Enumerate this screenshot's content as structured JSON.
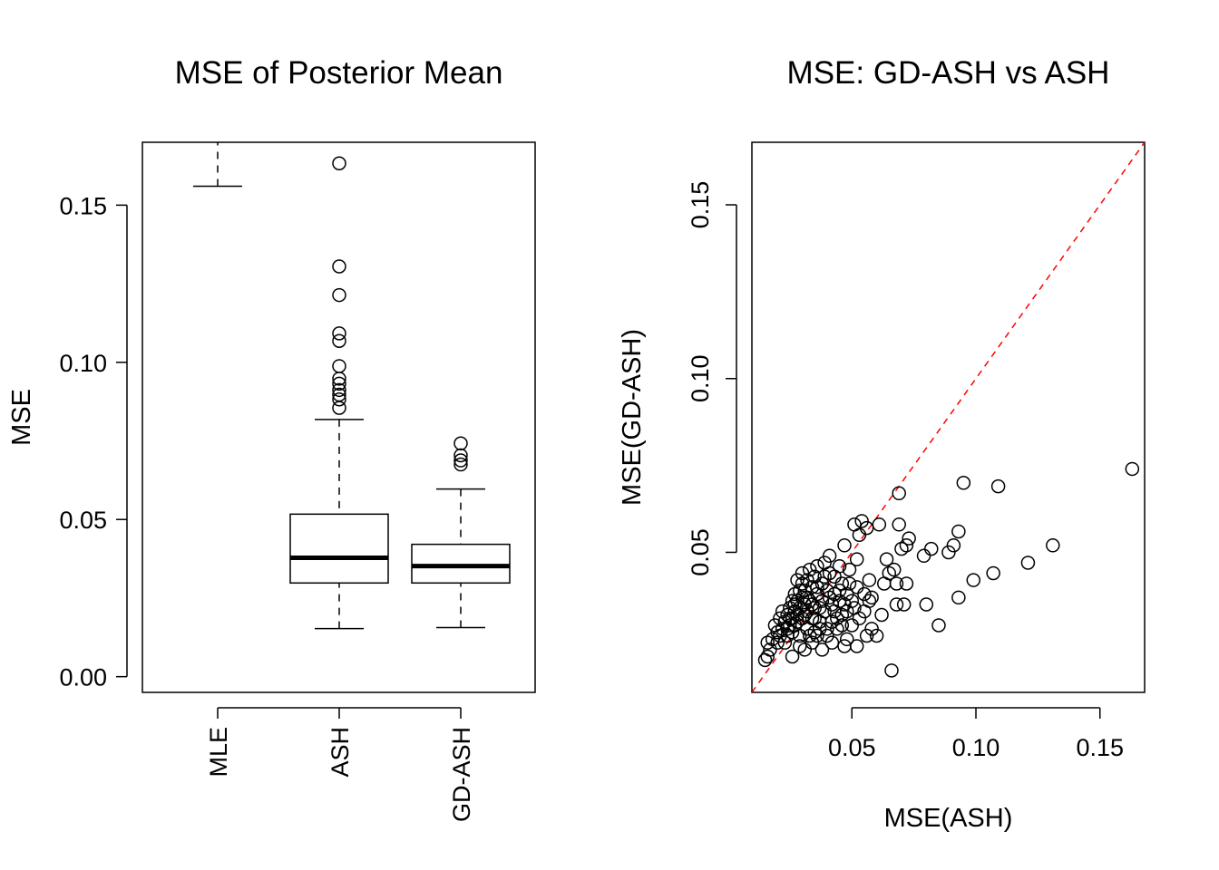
{
  "chart_data": [
    {
      "type": "box",
      "title": "MSE of Posterior Mean",
      "xlabel": "",
      "ylabel": "MSE",
      "ylim": [
        -0.005,
        0.17
      ],
      "yticks": [
        "0.00",
        "0.05",
        "0.10",
        "0.15"
      ],
      "ytick_values": [
        0.0,
        0.05,
        0.1,
        0.15
      ],
      "categories": [
        "MLE",
        "ASH",
        "GD-ASH"
      ],
      "boxes": [
        {
          "name": "MLE",
          "lower_whisker": 0.156,
          "q1": null,
          "median": null,
          "q3": null,
          "upper_whisker": null,
          "outliers": [],
          "note": "box lies above plotted range; only lower whisker visible"
        },
        {
          "name": "ASH",
          "lower_whisker": 0.0153,
          "q1": 0.0298,
          "median": 0.0378,
          "q3": 0.0517,
          "upper_whisker": 0.0818,
          "outliers": [
            0.0855,
            0.0882,
            0.0897,
            0.0912,
            0.0932,
            0.0948,
            0.0988,
            0.1068,
            0.1092,
            0.1214,
            0.1305,
            0.1633
          ]
        },
        {
          "name": "GD-ASH",
          "lower_whisker": 0.0156,
          "q1": 0.0298,
          "median": 0.0352,
          "q3": 0.0421,
          "upper_whisker": 0.0597,
          "outliers": [
            0.0675,
            0.0688,
            0.0704,
            0.0742
          ]
        }
      ]
    },
    {
      "type": "scatter",
      "title": "MSE: GD-ASH vs ASH",
      "xlabel": "MSE(ASH)",
      "ylabel": "MSE(GD-ASH)",
      "xlim": [
        0.0097,
        0.168
      ],
      "ylim": [
        0.0097,
        0.168
      ],
      "xticks": [
        "0.05",
        "0.10",
        "0.15"
      ],
      "xtick_values": [
        0.05,
        0.1,
        0.15
      ],
      "yticks": [
        "0.05",
        "0.10",
        "0.15"
      ],
      "ytick_values": [
        0.05,
        0.1,
        0.15
      ],
      "reference_line": {
        "slope": 1,
        "intercept": 0,
        "color": "#ff0000",
        "style": "dashed"
      },
      "points": [
        [
          0.163,
          0.074
        ],
        [
          0.131,
          0.052
        ],
        [
          0.121,
          0.047
        ],
        [
          0.109,
          0.069
        ],
        [
          0.107,
          0.044
        ],
        [
          0.099,
          0.042
        ],
        [
          0.095,
          0.07
        ],
        [
          0.093,
          0.056
        ],
        [
          0.093,
          0.037
        ],
        [
          0.091,
          0.052
        ],
        [
          0.089,
          0.05
        ],
        [
          0.085,
          0.029
        ],
        [
          0.082,
          0.051
        ],
        [
          0.08,
          0.035
        ],
        [
          0.079,
          0.049
        ],
        [
          0.073,
          0.054
        ],
        [
          0.072,
          0.052
        ],
        [
          0.072,
          0.041
        ],
        [
          0.071,
          0.035
        ],
        [
          0.07,
          0.051
        ],
        [
          0.069,
          0.067
        ],
        [
          0.069,
          0.058
        ],
        [
          0.068,
          0.035
        ],
        [
          0.068,
          0.041
        ],
        [
          0.067,
          0.045
        ],
        [
          0.066,
          0.016
        ],
        [
          0.065,
          0.044
        ],
        [
          0.064,
          0.048
        ],
        [
          0.063,
          0.041
        ],
        [
          0.061,
          0.058
        ],
        [
          0.058,
          0.028
        ],
        [
          0.057,
          0.042
        ],
        [
          0.057,
          0.036
        ],
        [
          0.056,
          0.057
        ],
        [
          0.056,
          0.026
        ],
        [
          0.055,
          0.038
        ],
        [
          0.054,
          0.059
        ],
        [
          0.053,
          0.055
        ],
        [
          0.052,
          0.048
        ],
        [
          0.052,
          0.023
        ],
        [
          0.051,
          0.058
        ],
        [
          0.051,
          0.034
        ],
        [
          0.05,
          0.029
        ],
        [
          0.049,
          0.045
        ],
        [
          0.048,
          0.033
        ],
        [
          0.048,
          0.025
        ],
        [
          0.047,
          0.052
        ],
        [
          0.047,
          0.023
        ],
        [
          0.046,
          0.041
        ],
        [
          0.046,
          0.032
        ],
        [
          0.045,
          0.046
        ],
        [
          0.045,
          0.036
        ],
        [
          0.044,
          0.028
        ],
        [
          0.043,
          0.043
        ],
        [
          0.043,
          0.038
        ],
        [
          0.042,
          0.035
        ],
        [
          0.042,
          0.03
        ],
        [
          0.041,
          0.049
        ],
        [
          0.041,
          0.044
        ],
        [
          0.04,
          0.039
        ],
        [
          0.04,
          0.026
        ],
        [
          0.039,
          0.047
        ],
        [
          0.039,
          0.033
        ],
        [
          0.038,
          0.041
        ],
        [
          0.038,
          0.036
        ],
        [
          0.037,
          0.03
        ],
        [
          0.036,
          0.046
        ],
        [
          0.036,
          0.038
        ],
        [
          0.035,
          0.043
        ],
        [
          0.035,
          0.034
        ],
        [
          0.035,
          0.027
        ],
        [
          0.034,
          0.04
        ],
        [
          0.034,
          0.031
        ],
        [
          0.033,
          0.045
        ],
        [
          0.033,
          0.036
        ],
        [
          0.032,
          0.042
        ],
        [
          0.032,
          0.033
        ],
        [
          0.032,
          0.028
        ],
        [
          0.031,
          0.039
        ],
        [
          0.031,
          0.035
        ],
        [
          0.031,
          0.022
        ],
        [
          0.03,
          0.044
        ],
        [
          0.03,
          0.041
        ],
        [
          0.03,
          0.037
        ],
        [
          0.03,
          0.031
        ],
        [
          0.029,
          0.039
        ],
        [
          0.029,
          0.034
        ],
        [
          0.029,
          0.026
        ],
        [
          0.028,
          0.042
        ],
        [
          0.028,
          0.036
        ],
        [
          0.028,
          0.032
        ],
        [
          0.027,
          0.038
        ],
        [
          0.027,
          0.033
        ],
        [
          0.027,
          0.029
        ],
        [
          0.026,
          0.036
        ],
        [
          0.026,
          0.031
        ],
        [
          0.026,
          0.027
        ],
        [
          0.026,
          0.02
        ],
        [
          0.025,
          0.034
        ],
        [
          0.025,
          0.029
        ],
        [
          0.024,
          0.032
        ],
        [
          0.024,
          0.026
        ],
        [
          0.023,
          0.03
        ],
        [
          0.023,
          0.024
        ],
        [
          0.022,
          0.028
        ],
        [
          0.022,
          0.033
        ],
        [
          0.021,
          0.026
        ],
        [
          0.021,
          0.031
        ],
        [
          0.02,
          0.027
        ],
        [
          0.02,
          0.024
        ],
        [
          0.019,
          0.029
        ],
        [
          0.018,
          0.025
        ],
        [
          0.017,
          0.022
        ],
        [
          0.016,
          0.024
        ],
        [
          0.016,
          0.02
        ],
        [
          0.015,
          0.019
        ],
        [
          0.034,
          0.024
        ],
        [
          0.036,
          0.026
        ],
        [
          0.038,
          0.022
        ],
        [
          0.04,
          0.028
        ],
        [
          0.042,
          0.024
        ],
        [
          0.044,
          0.031
        ],
        [
          0.037,
          0.028
        ],
        [
          0.033,
          0.026
        ],
        [
          0.029,
          0.023
        ],
        [
          0.046,
          0.029
        ],
        [
          0.048,
          0.038
        ],
        [
          0.05,
          0.036
        ],
        [
          0.053,
          0.031
        ],
        [
          0.055,
          0.033
        ],
        [
          0.058,
          0.037
        ],
        [
          0.06,
          0.026
        ],
        [
          0.039,
          0.043
        ],
        [
          0.041,
          0.037
        ],
        [
          0.036,
          0.04
        ],
        [
          0.034,
          0.035
        ],
        [
          0.031,
          0.032
        ],
        [
          0.027,
          0.035
        ],
        [
          0.025,
          0.031
        ],
        [
          0.024,
          0.028
        ],
        [
          0.028,
          0.03
        ],
        [
          0.032,
          0.037
        ],
        [
          0.035,
          0.031
        ],
        [
          0.037,
          0.034
        ],
        [
          0.043,
          0.033
        ],
        [
          0.045,
          0.039
        ],
        [
          0.047,
          0.035
        ],
        [
          0.049,
          0.041
        ],
        [
          0.052,
          0.04
        ],
        [
          0.062,
          0.032
        ]
      ]
    }
  ]
}
